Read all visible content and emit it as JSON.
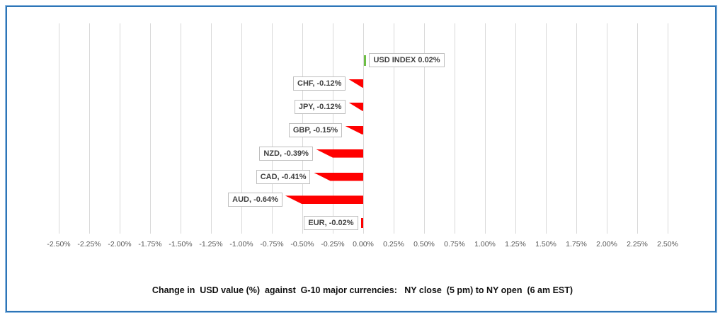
{
  "page": {
    "background": "#FFFFFF"
  },
  "chart_data": {
    "type": "bar",
    "orientation": "horizontal",
    "title": "Change in  USD value (%)  against  G-10 major currencies:   NY close  (5 pm) to NY open  (6 am EST)",
    "categories": [
      "USD INDEX",
      "CHF",
      "JPY",
      "GBP",
      "NZD",
      "CAD",
      "AUD",
      "EUR"
    ],
    "values": [
      0.02,
      -0.12,
      -0.12,
      -0.15,
      -0.39,
      -0.41,
      -0.64,
      -0.02
    ],
    "labels": [
      "USD INDEX 0.02%",
      "CHF, -0.12%",
      "JPY, -0.12%",
      "GBP, -0.15%",
      "NZD, -0.39%",
      "CAD, -0.41%",
      "AUD, -0.64%",
      "EUR, -0.02%"
    ],
    "xlabel": "",
    "ylabel": "",
    "xlim": [
      -2.5,
      2.5
    ],
    "tick_step": 0.25,
    "x_ticks": [
      "-2.50%",
      "-2.25%",
      "-2.00%",
      "-1.75%",
      "-1.50%",
      "-1.25%",
      "-1.00%",
      "-0.75%",
      "-0.50%",
      "-0.25%",
      "0.00%",
      "0.25%",
      "0.50%",
      "0.75%",
      "1.00%",
      "1.25%",
      "1.50%",
      "1.75%",
      "2.00%",
      "2.25%",
      "2.50%"
    ],
    "grid": true,
    "legend": "none",
    "label_style": "callout-box",
    "colors": {
      "negative_bar": "#FF0000",
      "positive_bar": "#6DBE45",
      "gridline": "#D9D9D9",
      "tick_text": "#595959",
      "label_text": "#404040",
      "label_border": "#BFBFBF",
      "frame_inner": "#2E75B6",
      "frame_outer": "#9DC3E6"
    }
  }
}
